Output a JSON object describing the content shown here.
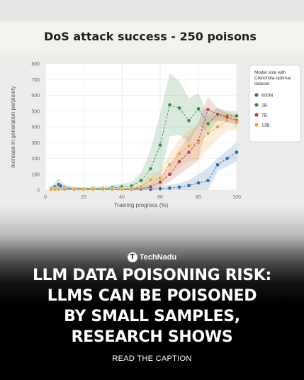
{
  "chart_data": {
    "type": "line",
    "title": "DoS attack success - 250 poisons",
    "xlabel": "Training progress (%)",
    "ylabel": "Increase in generation perplexity",
    "xlim": [
      0,
      100
    ],
    "ylim": [
      0,
      800
    ],
    "xticks": [
      "0",
      "20",
      "40",
      "60",
      "80",
      "100"
    ],
    "yticks": [
      "0",
      "100",
      "200",
      "300",
      "400",
      "500",
      "600",
      "700",
      "800"
    ],
    "grid": true,
    "legend": {
      "title_lines": [
        "Model size with",
        "Chinchilla-optimal",
        "dataset"
      ],
      "placement": "top-right outside"
    },
    "series": [
      {
        "name": "600M",
        "color": "#2c6aa8",
        "points": [
          [
            3,
            10
          ],
          [
            5,
            20
          ],
          [
            7,
            35
          ],
          [
            8,
            25
          ],
          [
            10,
            15
          ],
          [
            15,
            8
          ],
          [
            20,
            5
          ],
          [
            25,
            5
          ],
          [
            30,
            5
          ],
          [
            35,
            5
          ],
          [
            40,
            5
          ],
          [
            45,
            5
          ],
          [
            50,
            5
          ],
          [
            55,
            5
          ],
          [
            60,
            8
          ],
          [
            65,
            12
          ],
          [
            70,
            18
          ],
          [
            75,
            28
          ],
          [
            80,
            45
          ],
          [
            85,
            60
          ],
          [
            90,
            160
          ],
          [
            95,
            200
          ],
          [
            100,
            240
          ]
        ],
        "band": [
          [
            3,
            15
          ],
          [
            5,
            25
          ],
          [
            7,
            40
          ],
          [
            8,
            30
          ],
          [
            10,
            20
          ],
          [
            15,
            10
          ],
          [
            20,
            8
          ],
          [
            25,
            8
          ],
          [
            30,
            8
          ],
          [
            35,
            8
          ],
          [
            40,
            8
          ],
          [
            45,
            8
          ],
          [
            50,
            8
          ],
          [
            55,
            10
          ],
          [
            60,
            15
          ],
          [
            65,
            20
          ],
          [
            70,
            25
          ],
          [
            75,
            35
          ],
          [
            80,
            55
          ],
          [
            85,
            80
          ],
          [
            90,
            40
          ],
          [
            95,
            50
          ],
          [
            100,
            60
          ]
        ]
      },
      {
        "name": "2B",
        "color": "#3a8a47",
        "points": [
          [
            3,
            5
          ],
          [
            5,
            8
          ],
          [
            7,
            10
          ],
          [
            10,
            10
          ],
          [
            15,
            8
          ],
          [
            20,
            8
          ],
          [
            25,
            10
          ],
          [
            30,
            10
          ],
          [
            35,
            15
          ],
          [
            40,
            20
          ],
          [
            45,
            25
          ],
          [
            50,
            60
          ],
          [
            55,
            135
          ],
          [
            60,
            285
          ],
          [
            65,
            540
          ],
          [
            70,
            520
          ],
          [
            75,
            440
          ],
          [
            80,
            515
          ],
          [
            85,
            420
          ],
          [
            90,
            480
          ],
          [
            95,
            470
          ],
          [
            100,
            470
          ]
        ],
        "band": [
          [
            3,
            8
          ],
          [
            5,
            10
          ],
          [
            7,
            12
          ],
          [
            10,
            12
          ],
          [
            15,
            10
          ],
          [
            20,
            10
          ],
          [
            25,
            12
          ],
          [
            30,
            12
          ],
          [
            35,
            15
          ],
          [
            40,
            20
          ],
          [
            45,
            25
          ],
          [
            50,
            50
          ],
          [
            55,
            120
          ],
          [
            60,
            200
          ],
          [
            65,
            200
          ],
          [
            70,
            170
          ],
          [
            75,
            140
          ],
          [
            80,
            100
          ],
          [
            85,
            60
          ],
          [
            90,
            40
          ],
          [
            95,
            30
          ],
          [
            100,
            30
          ]
        ]
      },
      {
        "name": "7B",
        "color": "#b8403e",
        "points": [
          [
            3,
            5
          ],
          [
            5,
            5
          ],
          [
            7,
            5
          ],
          [
            10,
            5
          ],
          [
            15,
            5
          ],
          [
            20,
            5
          ],
          [
            25,
            5
          ],
          [
            30,
            5
          ],
          [
            35,
            5
          ],
          [
            40,
            5
          ],
          [
            45,
            5
          ],
          [
            50,
            10
          ],
          [
            55,
            20
          ],
          [
            60,
            50
          ],
          [
            65,
            100
          ],
          [
            70,
            180
          ],
          [
            75,
            240
          ],
          [
            80,
            310
          ],
          [
            85,
            510
          ],
          [
            90,
            480
          ],
          [
            95,
            460
          ],
          [
            100,
            440
          ]
        ],
        "band": [
          [
            3,
            5
          ],
          [
            5,
            5
          ],
          [
            7,
            5
          ],
          [
            10,
            5
          ],
          [
            15,
            5
          ],
          [
            20,
            5
          ],
          [
            25,
            5
          ],
          [
            30,
            5
          ],
          [
            35,
            5
          ],
          [
            40,
            5
          ],
          [
            45,
            5
          ],
          [
            50,
            8
          ],
          [
            55,
            15
          ],
          [
            60,
            30
          ],
          [
            65,
            50
          ],
          [
            70,
            80
          ],
          [
            75,
            100
          ],
          [
            80,
            120
          ],
          [
            85,
            80
          ],
          [
            90,
            40
          ],
          [
            95,
            30
          ],
          [
            100,
            30
          ]
        ]
      },
      {
        "name": "13B",
        "color": "#e8a33a",
        "points": [
          [
            3,
            5
          ],
          [
            5,
            5
          ],
          [
            7,
            5
          ],
          [
            10,
            5
          ],
          [
            15,
            5
          ],
          [
            20,
            5
          ],
          [
            25,
            5
          ],
          [
            30,
            5
          ],
          [
            35,
            5
          ],
          [
            40,
            5
          ],
          [
            45,
            10
          ],
          [
            50,
            20
          ],
          [
            55,
            65
          ],
          [
            60,
            75
          ],
          [
            65,
            160
          ],
          [
            70,
            230
          ],
          [
            75,
            280
          ],
          [
            80,
            300
          ],
          [
            85,
            360
          ],
          [
            90,
            400
          ],
          [
            95,
            440
          ],
          [
            100,
            430
          ]
        ],
        "band": [
          [
            3,
            5
          ],
          [
            5,
            5
          ],
          [
            7,
            5
          ],
          [
            10,
            5
          ],
          [
            15,
            5
          ],
          [
            20,
            5
          ],
          [
            25,
            5
          ],
          [
            30,
            5
          ],
          [
            35,
            5
          ],
          [
            40,
            5
          ],
          [
            45,
            8
          ],
          [
            50,
            15
          ],
          [
            55,
            40
          ],
          [
            60,
            50
          ],
          [
            65,
            70
          ],
          [
            70,
            90
          ],
          [
            75,
            100
          ],
          [
            80,
            110
          ],
          [
            85,
            100
          ],
          [
            90,
            80
          ],
          [
            95,
            60
          ],
          [
            100,
            50
          ]
        ]
      }
    ]
  },
  "brand": {
    "logo_glyph": "T",
    "name": "TechNadu"
  },
  "headline": {
    "lines": [
      "LLM DATA POISONING RISK:",
      "LLMS CAN BE POISONED",
      "BY SMALL SAMPLES,",
      "RESEARCH SHOWS"
    ]
  },
  "cta": "READ THE CAPTION"
}
